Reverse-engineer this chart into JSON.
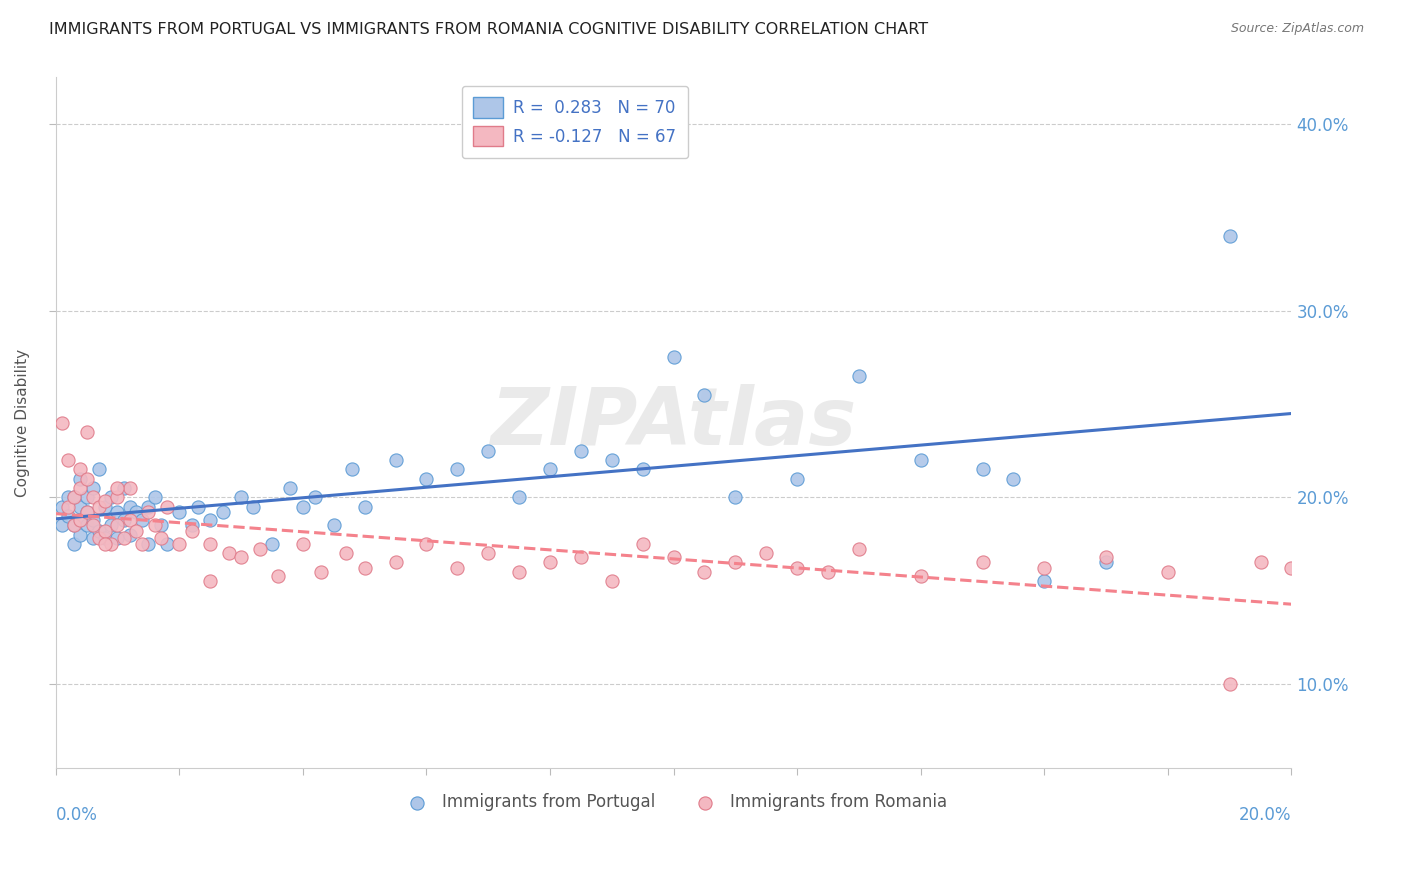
{
  "title": "IMMIGRANTS FROM PORTUGAL VS IMMIGRANTS FROM ROMANIA COGNITIVE DISABILITY CORRELATION CHART",
  "source": "Source: ZipAtlas.com",
  "ylabel": "Cognitive Disability",
  "yticks": [
    0.1,
    0.2,
    0.3,
    0.4
  ],
  "ytick_labels": [
    "10.0%",
    "20.0%",
    "30.0%",
    "40.0%"
  ],
  "xlim": [
    0.0,
    0.2
  ],
  "ylim": [
    0.055,
    0.425
  ],
  "portugal_color": "#aec6e8",
  "portugal_edge": "#5b9bd5",
  "romania_color": "#f4b8c1",
  "romania_edge": "#e07b8a",
  "trend_portugal_color": "#4472c4",
  "trend_romania_color": "#f4828c",
  "watermark": "ZIPAtlas",
  "portugal_x": [
    0.001,
    0.001,
    0.002,
    0.002,
    0.003,
    0.003,
    0.003,
    0.004,
    0.004,
    0.004,
    0.004,
    0.005,
    0.005,
    0.005,
    0.006,
    0.006,
    0.006,
    0.007,
    0.007,
    0.008,
    0.008,
    0.009,
    0.009,
    0.01,
    0.01,
    0.011,
    0.011,
    0.012,
    0.012,
    0.013,
    0.014,
    0.015,
    0.015,
    0.016,
    0.017,
    0.018,
    0.02,
    0.022,
    0.023,
    0.025,
    0.027,
    0.03,
    0.032,
    0.035,
    0.038,
    0.04,
    0.042,
    0.045,
    0.048,
    0.05,
    0.055,
    0.06,
    0.065,
    0.07,
    0.075,
    0.08,
    0.085,
    0.09,
    0.095,
    0.1,
    0.105,
    0.11,
    0.12,
    0.13,
    0.14,
    0.15,
    0.155,
    0.16,
    0.17,
    0.19
  ],
  "portugal_y": [
    0.185,
    0.195,
    0.19,
    0.2,
    0.175,
    0.185,
    0.2,
    0.18,
    0.188,
    0.195,
    0.21,
    0.185,
    0.192,
    0.2,
    0.178,
    0.188,
    0.205,
    0.182,
    0.215,
    0.178,
    0.195,
    0.185,
    0.2,
    0.178,
    0.192,
    0.188,
    0.205,
    0.18,
    0.195,
    0.192,
    0.188,
    0.175,
    0.195,
    0.2,
    0.185,
    0.175,
    0.192,
    0.185,
    0.195,
    0.188,
    0.192,
    0.2,
    0.195,
    0.175,
    0.205,
    0.195,
    0.2,
    0.185,
    0.215,
    0.195,
    0.22,
    0.21,
    0.215,
    0.225,
    0.2,
    0.215,
    0.225,
    0.22,
    0.215,
    0.275,
    0.255,
    0.2,
    0.21,
    0.265,
    0.22,
    0.215,
    0.21,
    0.155,
    0.165,
    0.34
  ],
  "romania_x": [
    0.001,
    0.002,
    0.002,
    0.003,
    0.003,
    0.004,
    0.004,
    0.004,
    0.005,
    0.005,
    0.006,
    0.006,
    0.007,
    0.007,
    0.008,
    0.008,
    0.009,
    0.01,
    0.01,
    0.011,
    0.012,
    0.012,
    0.013,
    0.014,
    0.015,
    0.016,
    0.017,
    0.018,
    0.02,
    0.022,
    0.025,
    0.028,
    0.03,
    0.033,
    0.036,
    0.04,
    0.043,
    0.047,
    0.05,
    0.055,
    0.06,
    0.065,
    0.07,
    0.075,
    0.08,
    0.085,
    0.09,
    0.095,
    0.1,
    0.105,
    0.11,
    0.115,
    0.12,
    0.125,
    0.13,
    0.14,
    0.15,
    0.16,
    0.17,
    0.18,
    0.19,
    0.195,
    0.2,
    0.005,
    0.008,
    0.01,
    0.025
  ],
  "romania_y": [
    0.24,
    0.195,
    0.22,
    0.185,
    0.2,
    0.188,
    0.205,
    0.215,
    0.192,
    0.21,
    0.185,
    0.2,
    0.178,
    0.195,
    0.182,
    0.198,
    0.175,
    0.185,
    0.2,
    0.178,
    0.188,
    0.205,
    0.182,
    0.175,
    0.192,
    0.185,
    0.178,
    0.195,
    0.175,
    0.182,
    0.175,
    0.17,
    0.168,
    0.172,
    0.158,
    0.175,
    0.16,
    0.17,
    0.162,
    0.165,
    0.175,
    0.162,
    0.17,
    0.16,
    0.165,
    0.168,
    0.155,
    0.175,
    0.168,
    0.16,
    0.165,
    0.17,
    0.162,
    0.16,
    0.172,
    0.158,
    0.165,
    0.162,
    0.168,
    0.16,
    0.1,
    0.165,
    0.162,
    0.235,
    0.175,
    0.205,
    0.155
  ]
}
